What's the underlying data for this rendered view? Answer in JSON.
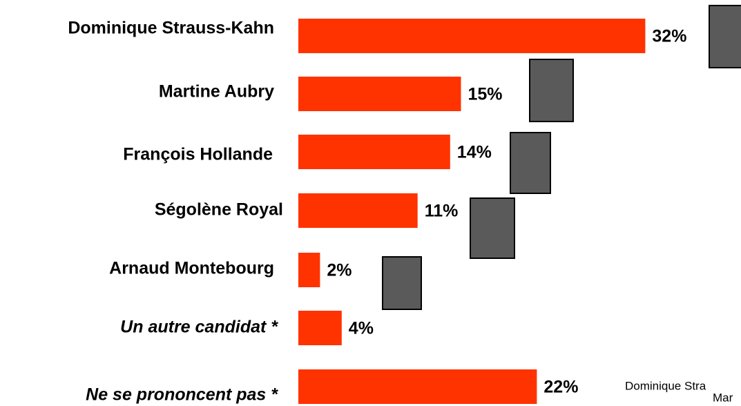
{
  "chart_data": {
    "type": "bar",
    "orientation": "horizontal",
    "categories": [
      "Dominique Strauss-Kahn",
      "Martine Aubry",
      "François Hollande",
      "Ségolène Royal",
      "Arnaud Montebourg",
      "Un autre candidat *",
      "Ne se prononcent pas *"
    ],
    "values": [
      32,
      15,
      14,
      11,
      2,
      4,
      22
    ],
    "value_labels": [
      "32%",
      "15%",
      "14%",
      "11%",
      "2%",
      "4%",
      "22%"
    ],
    "color": "#ff3300",
    "annotations": [
      "Dominique Stra",
      "Mar"
    ]
  }
}
